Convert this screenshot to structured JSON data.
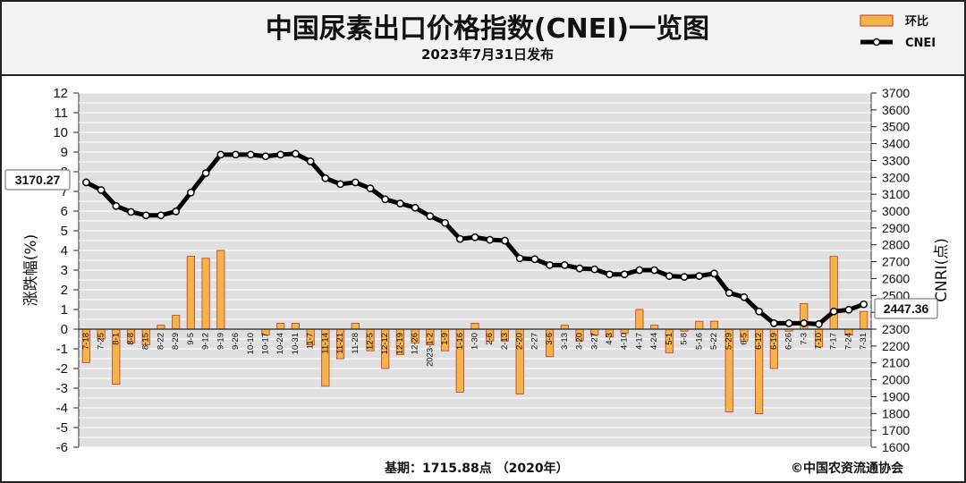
{
  "header": {
    "title": "中国尿素出口价格指数(CNEI)一览图",
    "subtitle": "2023年7月31日发布"
  },
  "legend": {
    "bar_label": "环比",
    "line_label": "CNEI"
  },
  "footer": {
    "base_note": "基期：1715.88点 （2020年）",
    "copyright": "©中国农资流通协会"
  },
  "callouts": {
    "start": "3170.27",
    "end": "2447.36"
  },
  "colors": {
    "bar_fill": "#f3b54a",
    "bar_edge": "#c0392b",
    "line": "#000000",
    "plot_bg": "#e0e0e0",
    "header_bg": "#f2f2f2"
  },
  "chart_data": {
    "type": "bar+line",
    "categories": [
      "7-18",
      "7-25",
      "8-1",
      "8-8",
      "8-15",
      "8-22",
      "8-29",
      "9-5",
      "9-12",
      "9-19",
      "9-26",
      "10-10",
      "10-17",
      "10-24",
      "10-31",
      "11-7",
      "11-14",
      "11-21",
      "11-28",
      "12-5",
      "12-12",
      "12-19",
      "12-26",
      "2023-1-2",
      "1-9",
      "1-16",
      "1-30",
      "2-6",
      "2-13",
      "2-20",
      "2-27",
      "3-6",
      "3-13",
      "3-20",
      "3-27",
      "4-3",
      "4-10",
      "4-17",
      "4-24",
      "5-1",
      "5-8",
      "5-16",
      "5-22",
      "5-29",
      "6-5",
      "6-12",
      "6-19",
      "6-26",
      "7-3",
      "7-10",
      "7-17",
      "7-24",
      "7-31"
    ],
    "series": [
      {
        "name": "环比",
        "axis": "left",
        "kind": "bar",
        "values": [
          -1.7,
          -0.5,
          -2.8,
          -0.7,
          -0.8,
          0.2,
          0.7,
          3.7,
          3.6,
          4.0,
          0.0,
          0.0,
          -0.3,
          0.3,
          0.3,
          -0.8,
          -2.9,
          -1.5,
          0.3,
          -1.1,
          -2.0,
          -1.3,
          -0.7,
          -0.8,
          -1.1,
          -3.2,
          0.3,
          -0.6,
          -0.6,
          -3.3,
          0.0,
          -1.4,
          0.2,
          -0.6,
          -0.3,
          -0.4,
          -0.2,
          1.0,
          0.2,
          -1.2,
          -0.1,
          0.4,
          0.4,
          -4.2,
          -0.6,
          -4.3,
          -2.0,
          -0.1,
          1.3,
          -0.9,
          3.7,
          -0.3,
          0.9
        ]
      },
      {
        "name": "CNEI",
        "axis": "right",
        "kind": "line",
        "values": [
          3170.27,
          3125,
          3030,
          2995,
          2975,
          2975,
          2998,
          3110,
          3225,
          3335,
          3335,
          3335,
          3325,
          3335,
          3340,
          3295,
          3195,
          3160,
          3170,
          3135,
          3070,
          3045,
          3020,
          2970,
          2930,
          2835,
          2845,
          2830,
          2825,
          2720,
          2715,
          2680,
          2680,
          2660,
          2655,
          2625,
          2625,
          2650,
          2650,
          2615,
          2610,
          2615,
          2630,
          2515,
          2490,
          2405,
          2335,
          2335,
          2335,
          2330,
          2405,
          2415,
          2447.36
        ]
      }
    ],
    "y_left": {
      "label": "涨跌幅(%)",
      "ylim": [
        -6,
        12
      ],
      "ticks": [
        12,
        11,
        10,
        9,
        8,
        7,
        6,
        5,
        4,
        3,
        2,
        1,
        0,
        -1,
        -2,
        -3,
        -4,
        -5,
        -6
      ]
    },
    "y_right": {
      "label": "CNRI(点)",
      "ylim": [
        1600,
        3700
      ],
      "ticks": [
        3700,
        3600,
        3500,
        3400,
        3300,
        3200,
        3100,
        3000,
        2900,
        2800,
        2700,
        2600,
        2500,
        2400,
        2300,
        2200,
        2100,
        2000,
        1900,
        1800,
        1700,
        1600
      ]
    },
    "grid": true,
    "legend_position": "top-right"
  }
}
